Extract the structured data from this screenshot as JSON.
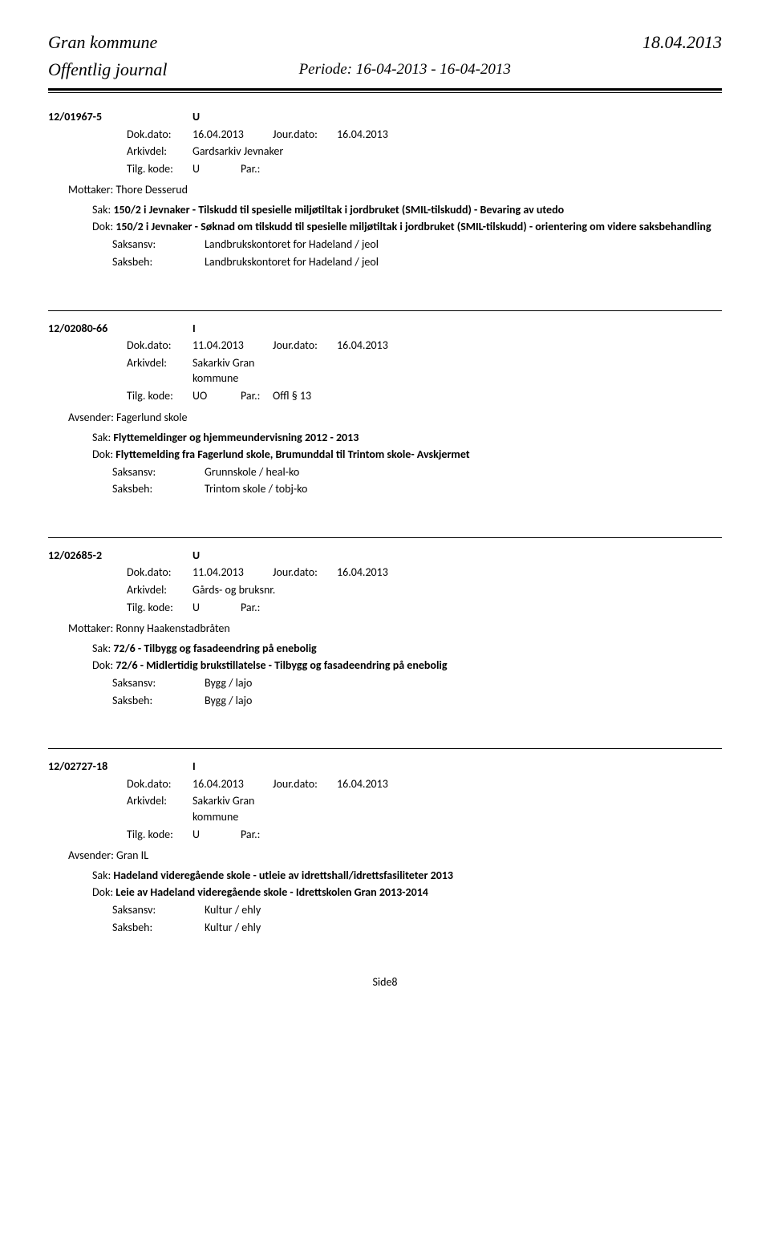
{
  "header": {
    "org": "Gran kommune",
    "journal": "Offentlig journal",
    "period": "Periode: 16-04-2013 - 16-04-2013",
    "date": "18.04.2013"
  },
  "entries": [
    {
      "case_id": "12/01967-5",
      "type": "U",
      "dok_dato_label": "Dok.dato:",
      "dok_dato": "16.04.2013",
      "jour_dato_label": "Jour.dato:",
      "jour_dato": "16.04.2013",
      "arkivdel_label": "Arkivdel:",
      "arkivdel": "Gardsarkiv Jevnaker",
      "tilg_label": "Tilg. kode:",
      "tilg_kode": "U",
      "par_label": "Par.:",
      "par": "",
      "recipient_label": "Mottaker:",
      "recipient": "Thore Desserud",
      "sak_label": "Sak:",
      "sak": "150/2 i Jevnaker - Tilskudd til spesielle miljøtiltak i jordbruket (SMIL-tilskudd) - Bevaring av utedo",
      "dok_label": "Dok:",
      "dok": "150/2 i Jevnaker - Søknad om tilskudd til spesielle miljøtiltak i jordbruket (SMIL-tilskudd) - orientering om videre saksbehandling",
      "saksansv_label": "Saksansv:",
      "saksansv": "Landbrukskontoret for Hadeland / jeol",
      "saksbeh_label": "Saksbeh:",
      "saksbeh": "Landbrukskontoret for Hadeland / jeol"
    },
    {
      "case_id": "12/02080-66",
      "type": "I",
      "dok_dato_label": "Dok.dato:",
      "dok_dato": "11.04.2013",
      "jour_dato_label": "Jour.dato:",
      "jour_dato": "16.04.2013",
      "arkivdel_label": "Arkivdel:",
      "arkivdel": "Sakarkiv Gran kommune",
      "tilg_label": "Tilg. kode:",
      "tilg_kode": "UO",
      "par_label": "Par.:",
      "par": "Offl § 13",
      "recipient_label": "Avsender:",
      "recipient": "Fagerlund skole",
      "sak_label": "Sak:",
      "sak": "Flyttemeldinger og hjemmeundervisning 2012 - 2013",
      "dok_label": "Dok:",
      "dok": "Flyttemelding fra Fagerlund skole, Brumunddal til Trintom skole- Avskjermet",
      "saksansv_label": "Saksansv:",
      "saksansv": "Grunnskole / heal-ko",
      "saksbeh_label": "Saksbeh:",
      "saksbeh": "Trintom skole / tobj-ko"
    },
    {
      "case_id": "12/02685-2",
      "type": "U",
      "dok_dato_label": "Dok.dato:",
      "dok_dato": "11.04.2013",
      "jour_dato_label": "Jour.dato:",
      "jour_dato": "16.04.2013",
      "arkivdel_label": "Arkivdel:",
      "arkivdel": "Gårds- og bruksnr.",
      "tilg_label": "Tilg. kode:",
      "tilg_kode": "U",
      "par_label": "Par.:",
      "par": "",
      "recipient_label": "Mottaker:",
      "recipient": "Ronny Haakenstadbråten",
      "sak_label": "Sak:",
      "sak": "72/6 - Tilbygg og fasadeendring på enebolig",
      "dok_label": "Dok:",
      "dok": "72/6 - Midlertidig brukstillatelse - Tilbygg og fasadeendring på enebolig",
      "saksansv_label": "Saksansv:",
      "saksansv": "Bygg / lajo",
      "saksbeh_label": "Saksbeh:",
      "saksbeh": "Bygg / lajo"
    },
    {
      "case_id": "12/02727-18",
      "type": "I",
      "dok_dato_label": "Dok.dato:",
      "dok_dato": "16.04.2013",
      "jour_dato_label": "Jour.dato:",
      "jour_dato": "16.04.2013",
      "arkivdel_label": "Arkivdel:",
      "arkivdel": "Sakarkiv Gran kommune",
      "tilg_label": "Tilg. kode:",
      "tilg_kode": "U",
      "par_label": "Par.:",
      "par": "",
      "recipient_label": "Avsender:",
      "recipient": "Gran IL",
      "sak_label": "Sak:",
      "sak": "Hadeland videregående skole - utleie av idrettshall/idrettsfasiliteter 2013",
      "dok_label": "Dok:",
      "dok": "Leie av Hadeland videregående skole - Idrettskolen Gran 2013-2014",
      "saksansv_label": "Saksansv:",
      "saksansv": "Kultur / ehly",
      "saksbeh_label": "Saksbeh:",
      "saksbeh": "Kultur / ehly"
    }
  ],
  "footer": {
    "page": "Side8"
  }
}
